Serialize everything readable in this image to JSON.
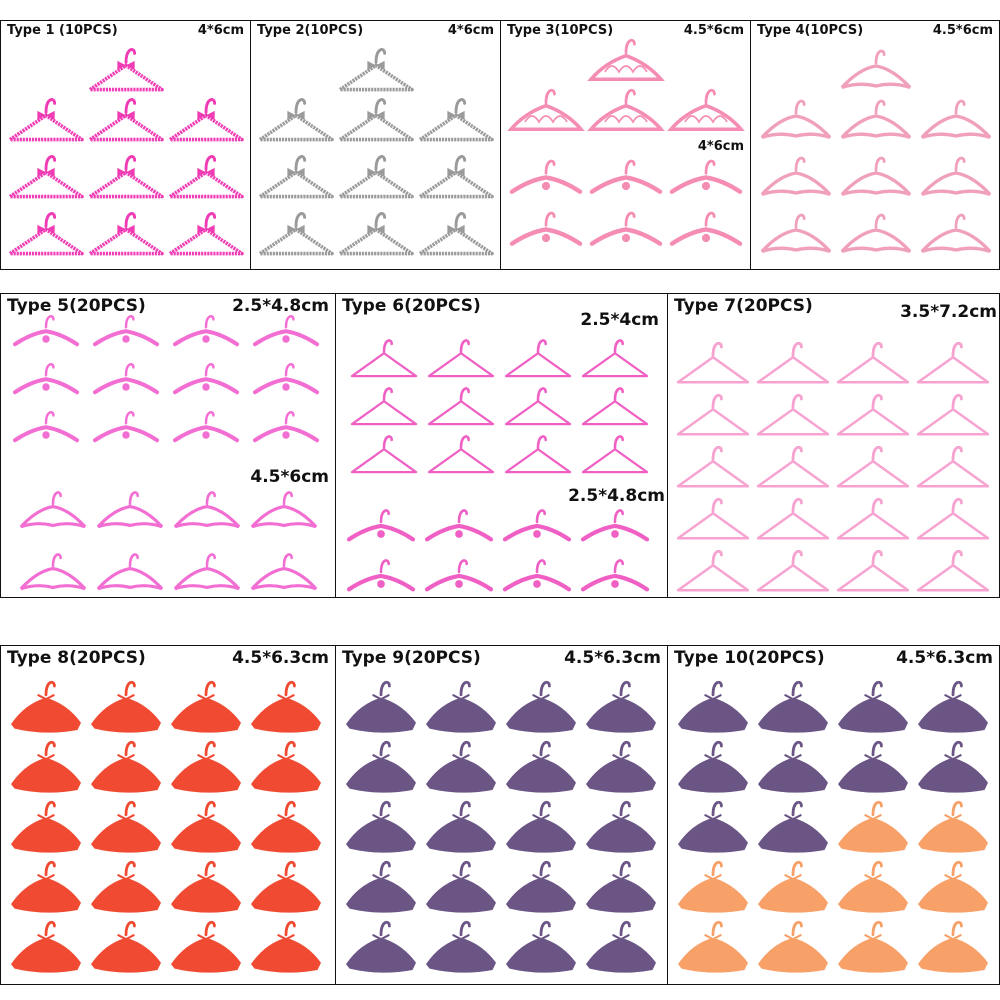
{
  "panels": [
    {
      "title": "Type 1 (10PCS)",
      "size": "4*6cm",
      "color": "#f03cb4",
      "style": "bow"
    },
    {
      "title": "Type 2(10PCS)",
      "size": "4*6cm",
      "color": "#9a9a9a",
      "style": "bow"
    },
    {
      "title": "Type 3(10PCS)",
      "size": "4.5*6cm",
      "sub_size": "4*6cm",
      "color": "#f58cb4",
      "style": "script"
    },
    {
      "title": "Type 4(10PCS)",
      "size": "4.5*6cm",
      "color": "#f0a0bc",
      "style": "cloud"
    },
    {
      "title": "Type 5(20PCS)",
      "size": "2.5*4.8cm",
      "sub_size": "4.5*6cm",
      "color": "#f26ed2",
      "style": "wave"
    },
    {
      "title": "Type 6(20PCS)",
      "size": "2.5*4cm",
      "sub_size": "2.5*4.8cm",
      "color": "#f060c4",
      "style": "plain"
    },
    {
      "title": "Type 7(20PCS)",
      "size": "3.5*7.2cm",
      "color": "#f7a2d0",
      "style": "suit"
    },
    {
      "title": "Type 8(20PCS)",
      "size": "4.5*6.3cm",
      "color": "#f04a32",
      "style": "velvet"
    },
    {
      "title": "Type 9(20PCS)",
      "size": "4.5*6.3cm",
      "color": "#6a5584",
      "style": "velvet"
    },
    {
      "title": "Type 10(20PCS)",
      "size": "4.5*6.3cm",
      "color": "#6a5584",
      "alt_color": "#f7a068",
      "style": "velvet"
    }
  ]
}
